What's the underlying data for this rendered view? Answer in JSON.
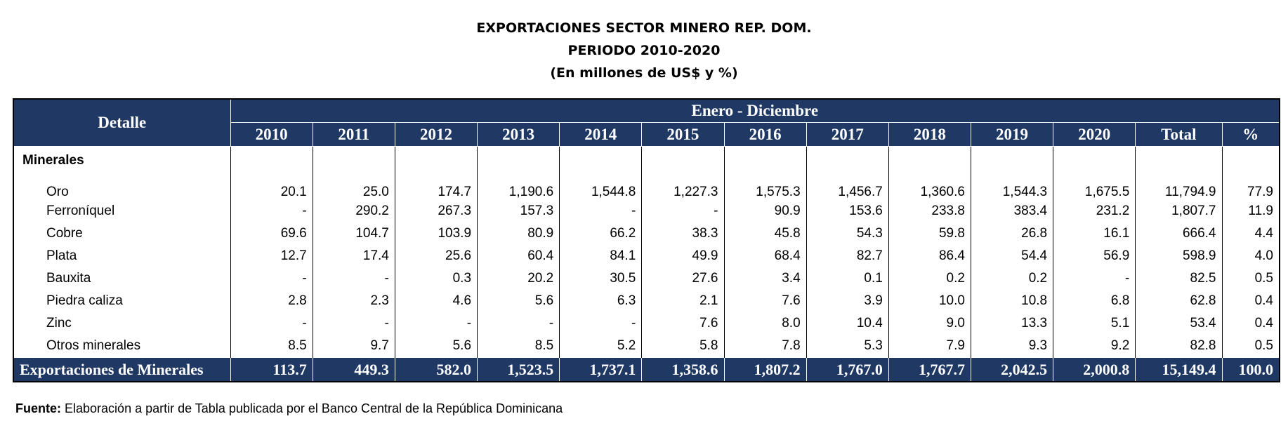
{
  "title": {
    "line1": "EXPORTACIONES SECTOR MINERO REP. DOM.",
    "line2": "PERIODO 2010-2020",
    "line3": "(En millones de US$ y %)"
  },
  "table": {
    "detalle_header": "Detalle",
    "group_header": "Enero - Diciembre",
    "columns": [
      "2010",
      "2011",
      "2012",
      "2013",
      "2014",
      "2015",
      "2016",
      "2017",
      "2018",
      "2019",
      "2020",
      "Total",
      "%"
    ],
    "section_label": "Minerales",
    "rows": [
      {
        "label": "Oro",
        "values": [
          "20.1",
          "25.0",
          "174.7",
          "1,190.6",
          "1,544.8",
          "1,227.3",
          "1,575.3",
          "1,456.7",
          "1,360.6",
          "1,544.3",
          "1,675.5",
          "11,794.9",
          "77.9"
        ]
      },
      {
        "label": "Ferroníquel",
        "values": [
          "-",
          "290.2",
          "267.3",
          "157.3",
          "-",
          "-",
          "90.9",
          "153.6",
          "233.8",
          "383.4",
          "231.2",
          "1,807.7",
          "11.9"
        ]
      },
      {
        "label": "Cobre",
        "values": [
          "69.6",
          "104.7",
          "103.9",
          "80.9",
          "66.2",
          "38.3",
          "45.8",
          "54.3",
          "59.8",
          "26.8",
          "16.1",
          "666.4",
          "4.4"
        ]
      },
      {
        "label": "Plata",
        "values": [
          "12.7",
          "17.4",
          "25.6",
          "60.4",
          "84.1",
          "49.9",
          "68.4",
          "82.7",
          "86.4",
          "54.4",
          "56.9",
          "598.9",
          "4.0"
        ]
      },
      {
        "label": "Bauxita",
        "values": [
          "-",
          "-",
          "0.3",
          "20.2",
          "30.5",
          "27.6",
          "3.4",
          "0.1",
          "0.2",
          "0.2",
          "-",
          "82.5",
          "0.5"
        ]
      },
      {
        "label": "Piedra caliza",
        "values": [
          "2.8",
          "2.3",
          "4.6",
          "5.6",
          "6.3",
          "2.1",
          "7.6",
          "3.9",
          "10.0",
          "10.8",
          "6.8",
          "62.8",
          "0.4"
        ]
      },
      {
        "label": "Zinc",
        "values": [
          "-",
          "-",
          "-",
          "-",
          "-",
          "7.6",
          "8.0",
          "10.4",
          "9.0",
          "13.3",
          "5.1",
          "53.4",
          "0.4"
        ]
      },
      {
        "label": "Otros minerales",
        "values": [
          "8.5",
          "9.7",
          "5.6",
          "8.5",
          "5.2",
          "5.8",
          "7.8",
          "5.3",
          "7.9",
          "9.3",
          "9.2",
          "82.8",
          "0.5"
        ]
      }
    ],
    "total_row": {
      "label": "Exportaciones de Minerales",
      "values": [
        "113.7",
        "449.3",
        "582.0",
        "1,523.5",
        "1,737.1",
        "1,358.6",
        "1,807.2",
        "1,767.0",
        "1,767.7",
        "2,042.5",
        "2,000.8",
        "15,149.4",
        "100.0"
      ]
    }
  },
  "source": {
    "label": "Fuente:",
    "text": "Elaboración a partir de Tabla publicada por el Banco Central de la República Dominicana"
  },
  "colors": {
    "header_bg": "#203864",
    "header_text": "#ffffff"
  }
}
